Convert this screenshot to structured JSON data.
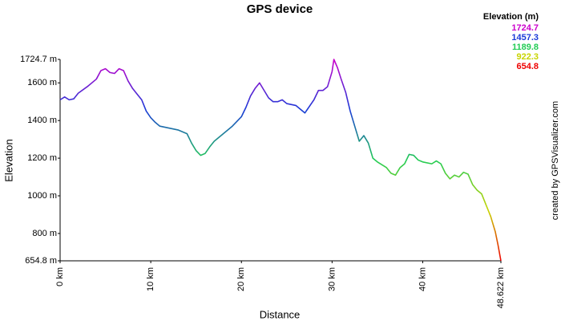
{
  "chart_data": {
    "type": "line",
    "title": "GPS device",
    "x_label": "Distance",
    "y_label": "Elevation",
    "credit": "created by GPSVisualizer.com",
    "xlim": [
      0,
      48.622
    ],
    "ylim": [
      654.8,
      1724.7
    ],
    "xticks": [
      {
        "value": 0,
        "label": "0 km"
      },
      {
        "value": 10,
        "label": "10 km"
      },
      {
        "value": 20,
        "label": "20 km"
      },
      {
        "value": 30,
        "label": "30 km"
      },
      {
        "value": 40,
        "label": "40 km"
      },
      {
        "value": 48.622,
        "label": "48.622 km"
      }
    ],
    "yticks": [
      {
        "value": 654.8,
        "label": "654.8 m"
      },
      {
        "value": 800,
        "label": "800 m"
      },
      {
        "value": 1000,
        "label": "1000 m"
      },
      {
        "value": 1200,
        "label": "1200 m"
      },
      {
        "value": 1400,
        "label": "1400 m"
      },
      {
        "value": 1600,
        "label": "1600 m"
      },
      {
        "value": 1724.7,
        "label": "1724.7 m"
      }
    ],
    "grid": false,
    "legend": {
      "title": "Elevation (m)",
      "entries": [
        {
          "value": 1724.7,
          "color": "#cc00cc"
        },
        {
          "value": 1457.3,
          "color": "#1a3ad8"
        },
        {
          "value": 1189.8,
          "color": "#22cc55"
        },
        {
          "value": 922.3,
          "color": "#c8d400"
        },
        {
          "value": 654.8,
          "color": "#ee0000"
        }
      ]
    },
    "x": [
      0,
      0.5,
      1,
      1.5,
      2,
      3,
      4,
      4.5,
      5,
      5.5,
      6,
      6.5,
      7,
      7.5,
      8,
      8.5,
      9,
      9.5,
      10,
      10.5,
      11,
      12,
      13,
      14,
      14.5,
      15,
      15.5,
      16,
      16.5,
      17,
      18,
      19,
      20,
      20.5,
      21,
      21.5,
      22,
      22.5,
      23,
      23.5,
      24,
      24.5,
      25,
      26,
      27,
      28,
      28.5,
      29,
      29.5,
      30,
      30.2,
      30.6,
      31,
      31.5,
      32,
      32.5,
      33,
      33.5,
      34,
      34.5,
      35,
      36,
      36.5,
      37,
      37.5,
      38,
      38.5,
      39,
      39.5,
      40,
      41,
      41.5,
      42,
      42.5,
      43,
      43.5,
      44,
      44.5,
      45,
      45.5,
      46,
      46.5,
      47,
      47.5,
      48,
      48.3,
      48.622
    ],
    "values": [
      1510,
      1525,
      1510,
      1515,
      1545,
      1580,
      1620,
      1665,
      1675,
      1655,
      1650,
      1675,
      1665,
      1610,
      1570,
      1540,
      1510,
      1450,
      1415,
      1390,
      1370,
      1360,
      1350,
      1330,
      1280,
      1240,
      1215,
      1225,
      1260,
      1290,
      1330,
      1370,
      1420,
      1470,
      1530,
      1570,
      1600,
      1560,
      1520,
      1500,
      1500,
      1510,
      1490,
      1480,
      1440,
      1510,
      1560,
      1560,
      1580,
      1660,
      1724.7,
      1680,
      1620,
      1550,
      1450,
      1370,
      1290,
      1320,
      1280,
      1200,
      1180,
      1150,
      1120,
      1110,
      1150,
      1170,
      1220,
      1215,
      1190,
      1180,
      1170,
      1185,
      1170,
      1120,
      1090,
      1110,
      1100,
      1125,
      1115,
      1060,
      1030,
      1010,
      950,
      890,
      810,
      740,
      654.8
    ]
  }
}
